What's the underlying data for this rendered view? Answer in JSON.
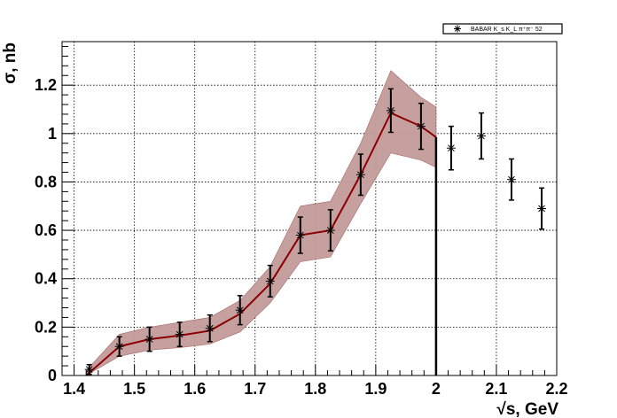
{
  "chart_data": {
    "type": "scatter",
    "xlabel": "√s, GeV",
    "ylabel": "σ, nb",
    "xlim": [
      1.38,
      2.2
    ],
    "ylim": [
      0,
      1.38
    ],
    "x_ticks": [
      1.4,
      1.5,
      1.6,
      1.7,
      1.8,
      1.9,
      2.0,
      2.1,
      2.2
    ],
    "x_tick_labels": [
      "1.4",
      "1.5",
      "1.6",
      "1.7",
      "1.8",
      "1.9",
      "2",
      "2.1",
      "2.2"
    ],
    "y_ticks": [
      0,
      0.2,
      0.4,
      0.6,
      0.8,
      1.0,
      1.2
    ],
    "y_tick_labels": [
      "0",
      "0.2",
      "0.4",
      "0.6",
      "0.8",
      "1",
      "1.2"
    ],
    "grid": true,
    "legend_position": "top-right",
    "legend": [
      {
        "label": "BABAR K_s K_L π⁺π⁻ 52",
        "marker": "star"
      }
    ],
    "series": [
      {
        "name": "BABAR K_s K_L π⁺π⁻ 52",
        "marker": "star",
        "color": "#000000",
        "x": [
          1.425,
          1.475,
          1.525,
          1.575,
          1.625,
          1.675,
          1.725,
          1.775,
          1.825,
          1.875,
          1.925,
          1.975,
          2.025,
          2.075,
          2.125,
          2.175
        ],
        "y": [
          0.025,
          0.12,
          0.15,
          0.17,
          0.195,
          0.27,
          0.39,
          0.58,
          0.6,
          0.83,
          1.095,
          1.03,
          0.94,
          0.99,
          0.81,
          0.69
        ],
        "err": [
          0.02,
          0.04,
          0.05,
          0.05,
          0.055,
          0.06,
          0.065,
          0.075,
          0.085,
          0.085,
          0.09,
          0.095,
          0.09,
          0.095,
          0.085,
          0.085
        ]
      }
    ],
    "fit_curve": {
      "color": "#8b0000",
      "band_color": "#c49a9a",
      "x": [
        1.42,
        1.475,
        1.525,
        1.575,
        1.625,
        1.675,
        1.725,
        1.775,
        1.825,
        1.875,
        1.925,
        1.975,
        2.0
      ],
      "y": [
        0.0,
        0.12,
        0.15,
        0.165,
        0.185,
        0.255,
        0.38,
        0.58,
        0.6,
        0.83,
        1.085,
        1.03,
        0.985
      ],
      "band_upper": [
        0.02,
        0.17,
        0.2,
        0.22,
        0.24,
        0.31,
        0.45,
        0.7,
        0.72,
        0.96,
        1.26,
        1.15,
        1.11
      ],
      "band_lower": [
        0.0,
        0.08,
        0.105,
        0.115,
        0.13,
        0.18,
        0.3,
        0.47,
        0.49,
        0.71,
        0.92,
        0.89,
        0.86
      ]
    },
    "vertical_line": {
      "x": 2.0,
      "y_from": 0,
      "y_to": 0.985,
      "color": "#000000"
    }
  }
}
